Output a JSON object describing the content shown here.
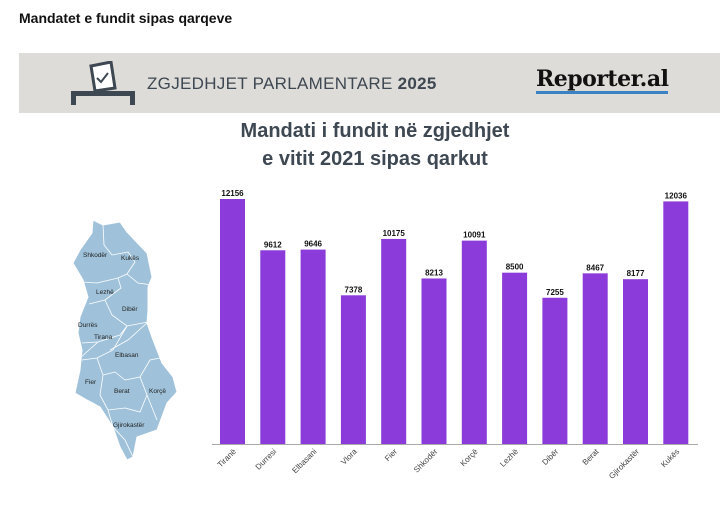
{
  "page": {
    "title": "Mandatet e fundit sipas qarqeve"
  },
  "banner": {
    "text": "ZGJEDHJET PARLAMENTARE",
    "year": "2025",
    "logo": "Reporter.al",
    "icon": "ballot-box-icon"
  },
  "map": {
    "labels": [
      "Shkodër",
      "Kukës",
      "Lezhë",
      "Dibër",
      "Durrës",
      "Tirana",
      "Elbasan",
      "Fier",
      "Berat",
      "Korçë",
      "Gjirokastër"
    ],
    "fill": "#9fc2da"
  },
  "chart_data": {
    "type": "bar",
    "title": "Mandati i fundit në zgjedhjet",
    "title_line2": "e vitit 2021 sipas qarkut",
    "categories": [
      "Tiranë",
      "Durresi",
      "Elbasani",
      "Vlora",
      "Fier",
      "Shkodër",
      "Korçë",
      "Lezhë",
      "Dibër",
      "Berat",
      "Gjirokastër",
      "Kukës"
    ],
    "values": [
      12156,
      9612,
      9646,
      7378,
      10175,
      8213,
      10091,
      8500,
      7255,
      8467,
      8177,
      12036
    ],
    "value_labels": [
      "12156",
      "9612",
      "9646",
      "7378",
      "10175",
      "8213",
      "10091",
      "8500",
      "7255",
      "8467",
      "8177",
      "12036"
    ],
    "xlabel": "",
    "ylabel": "",
    "ylim": [
      0,
      12156
    ],
    "grid": false,
    "color": "#8a3bd9"
  }
}
